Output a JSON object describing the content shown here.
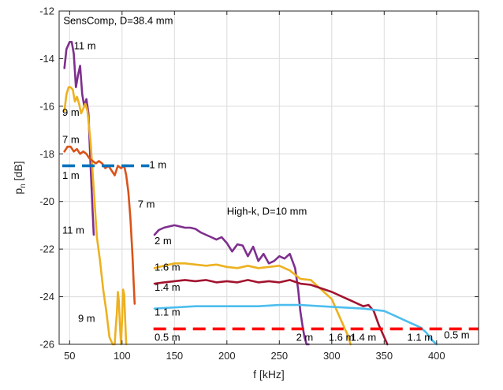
{
  "chart_data": {
    "type": "line",
    "xlabel": "f [kHz]",
    "ylabel": "p_n [dB]",
    "xlim": [
      40,
      440
    ],
    "ylim": [
      -26,
      -12
    ],
    "xticks": [
      50,
      100,
      150,
      200,
      250,
      300,
      350,
      400
    ],
    "yticks": [
      -26,
      -24,
      -22,
      -20,
      -18,
      -16,
      -14,
      -12
    ],
    "grid": true,
    "colors": {
      "purple": "#7E2F8E",
      "yellow": "#EDB120",
      "orange": "#D95319",
      "dark_red": "#A2142F",
      "light_blue": "#4DBEEE",
      "blue": "#0072BD",
      "red": "#FF0000"
    },
    "series": [
      {
        "name": "11 m",
        "group": "SensComp",
        "color": "#7E2F8E",
        "style": "solid",
        "x": [
          45,
          47,
          50,
          52,
          54,
          56,
          58,
          60,
          62,
          64,
          66,
          68,
          70,
          72,
          73
        ],
        "y": [
          -14.4,
          -13.6,
          -13.3,
          -13.3,
          -13.8,
          -15.2,
          -14.7,
          -14.3,
          -15.5,
          -16.0,
          -15.7,
          -16.3,
          -18.5,
          -20.5,
          -21.4
        ]
      },
      {
        "name": "9 m",
        "group": "SensComp",
        "color": "#EDB120",
        "style": "solid",
        "x": [
          45,
          47,
          49,
          51,
          53,
          55,
          57,
          59,
          61,
          63,
          65,
          67,
          70,
          73,
          76,
          79,
          82,
          85,
          88,
          91,
          93,
          94,
          95,
          96,
          97,
          98,
          99,
          100,
          101,
          102,
          103,
          104
        ],
        "y": [
          -16.2,
          -15.5,
          -15.2,
          -15.2,
          -15.3,
          -15.8,
          -15.6,
          -15.9,
          -16.3,
          -16.1,
          -15.9,
          -16.2,
          -17.5,
          -19.5,
          -21.5,
          -22.5,
          -23.7,
          -24.6,
          -25.7,
          -26.0,
          -26.0,
          -25.3,
          -24.7,
          -23.8,
          -24.2,
          -25.2,
          -26.0,
          -25.0,
          -23.7,
          -23.9,
          -25.0,
          -26.0
        ]
      },
      {
        "name": "7 m",
        "group": "SensComp",
        "color": "#D95319",
        "style": "solid",
        "x": [
          45,
          48,
          51,
          54,
          57,
          60,
          63,
          66,
          69,
          72,
          75,
          78,
          81,
          84,
          87,
          90,
          93,
          96,
          99,
          102,
          104,
          106,
          108,
          110,
          111,
          112
        ],
        "y": [
          -17.9,
          -17.7,
          -17.7,
          -17.9,
          -17.8,
          -18.0,
          -17.9,
          -18.0,
          -18.2,
          -18.3,
          -18.4,
          -18.3,
          -18.4,
          -18.6,
          -18.5,
          -18.7,
          -18.9,
          -18.5,
          -18.6,
          -18.5,
          -18.9,
          -19.6,
          -20.7,
          -22.3,
          -23.3,
          -24.3
        ]
      },
      {
        "name": "1 m",
        "group": "SensComp",
        "color": "#0072BD",
        "style": "dashed",
        "x": [
          43,
          126
        ],
        "y": [
          -18.5,
          -18.5
        ]
      },
      {
        "name": "2 m",
        "group": "High-k",
        "color": "#7E2F8E",
        "style": "solid",
        "x": [
          131,
          135,
          140,
          145,
          150,
          155,
          160,
          165,
          170,
          175,
          180,
          185,
          190,
          195,
          200,
          205,
          210,
          215,
          220,
          225,
          230,
          235,
          240,
          245,
          250,
          255,
          260,
          265,
          268,
          270,
          272,
          274,
          276,
          278
        ],
        "y": [
          -21.4,
          -21.2,
          -21.1,
          -21.05,
          -21.0,
          -21.05,
          -21.1,
          -21.1,
          -21.15,
          -21.3,
          -21.4,
          -21.5,
          -21.6,
          -21.5,
          -21.75,
          -22.1,
          -21.8,
          -21.85,
          -22.3,
          -21.9,
          -22.5,
          -22.2,
          -22.6,
          -22.5,
          -22.3,
          -22.4,
          -22.2,
          -22.8,
          -23.7,
          -24.6,
          -25.2,
          -25.7,
          -26.0,
          -26.0
        ]
      },
      {
        "name": "1.6 m",
        "group": "High-k",
        "color": "#EDB120",
        "style": "solid",
        "x": [
          131,
          140,
          150,
          160,
          170,
          180,
          190,
          200,
          210,
          220,
          230,
          240,
          250,
          260,
          270,
          280,
          290,
          300,
          305,
          310,
          315,
          318
        ],
        "y": [
          -22.8,
          -22.7,
          -22.6,
          -22.6,
          -22.65,
          -22.7,
          -22.65,
          -22.75,
          -22.8,
          -22.7,
          -22.8,
          -22.75,
          -22.7,
          -22.9,
          -23.25,
          -23.3,
          -23.7,
          -24.1,
          -24.6,
          -25.1,
          -25.6,
          -26.0
        ]
      },
      {
        "name": "1.4 m",
        "group": "High-k",
        "color": "#A2142F",
        "style": "solid",
        "x": [
          131,
          140,
          150,
          160,
          170,
          180,
          190,
          200,
          210,
          220,
          230,
          240,
          250,
          260,
          270,
          280,
          290,
          300,
          310,
          320,
          330,
          335,
          340,
          345,
          350,
          353
        ],
        "y": [
          -23.45,
          -23.4,
          -23.35,
          -23.3,
          -23.35,
          -23.3,
          -23.4,
          -23.35,
          -23.4,
          -23.3,
          -23.4,
          -23.35,
          -23.4,
          -23.3,
          -23.45,
          -23.5,
          -23.65,
          -23.8,
          -24.0,
          -24.2,
          -24.4,
          -24.35,
          -24.6,
          -25.2,
          -25.7,
          -26.0
        ]
      },
      {
        "name": "1.1 m",
        "group": "High-k",
        "color": "#4DBEEE",
        "style": "solid",
        "x": [
          131,
          150,
          170,
          190,
          210,
          230,
          250,
          270,
          290,
          310,
          330,
          350,
          360,
          370,
          380,
          385,
          390,
          395,
          400
        ],
        "y": [
          -24.5,
          -24.45,
          -24.4,
          -24.4,
          -24.4,
          -24.4,
          -24.35,
          -24.35,
          -24.4,
          -24.45,
          -24.5,
          -24.6,
          -24.8,
          -25.0,
          -25.2,
          -25.3,
          -25.5,
          -25.8,
          -26.0
        ]
      },
      {
        "name": "0.5 m",
        "group": "High-k",
        "color": "#FF0000",
        "style": "dashed",
        "x": [
          130,
          440
        ],
        "y": [
          -25.35,
          -25.35
        ]
      }
    ],
    "annotations": [
      {
        "text": "SensComp, D=38.4 mm",
        "x": 44,
        "y": -12.55,
        "anchor": "start"
      },
      {
        "text": "High-k, D=10 mm",
        "x": 200,
        "y": -20.55,
        "anchor": "start"
      },
      {
        "text": "11 m",
        "x": 54,
        "y": -13.6,
        "anchor": "start"
      },
      {
        "text": "9 m",
        "x": 43,
        "y": -16.4,
        "anchor": "start"
      },
      {
        "text": "7 m",
        "x": 43,
        "y": -17.55,
        "anchor": "start"
      },
      {
        "text": "1 m",
        "x": 43,
        "y": -19.05,
        "anchor": "start"
      },
      {
        "text": "1 m",
        "x": 126,
        "y": -18.6,
        "anchor": "start"
      },
      {
        "text": "7 m",
        "x": 115,
        "y": -20.25,
        "anchor": "start"
      },
      {
        "text": "11 m",
        "x": 43,
        "y": -21.35,
        "anchor": "start"
      },
      {
        "text": "9 m",
        "x": 58,
        "y": -25.05,
        "anchor": "start"
      },
      {
        "text": "2 m",
        "x": 131,
        "y": -21.8,
        "anchor": "start"
      },
      {
        "text": "1.6 m",
        "x": 131,
        "y": -22.9,
        "anchor": "start"
      },
      {
        "text": "1.4 m",
        "x": 131,
        "y": -23.75,
        "anchor": "start"
      },
      {
        "text": "1.1 m",
        "x": 131,
        "y": -24.8,
        "anchor": "start"
      },
      {
        "text": "0.5 m",
        "x": 131,
        "y": -25.85,
        "anchor": "start"
      },
      {
        "text": "2 m",
        "x": 266,
        "y": -25.85,
        "anchor": "start"
      },
      {
        "text": "1.6 m",
        "x": 297,
        "y": -25.85,
        "anchor": "start"
      },
      {
        "text": "1.4 m",
        "x": 318,
        "y": -25.85,
        "anchor": "start"
      },
      {
        "text": "1.1 m",
        "x": 372,
        "y": -25.85,
        "anchor": "start"
      },
      {
        "text": "0.5 m",
        "x": 407,
        "y": -25.75,
        "anchor": "start"
      }
    ]
  }
}
